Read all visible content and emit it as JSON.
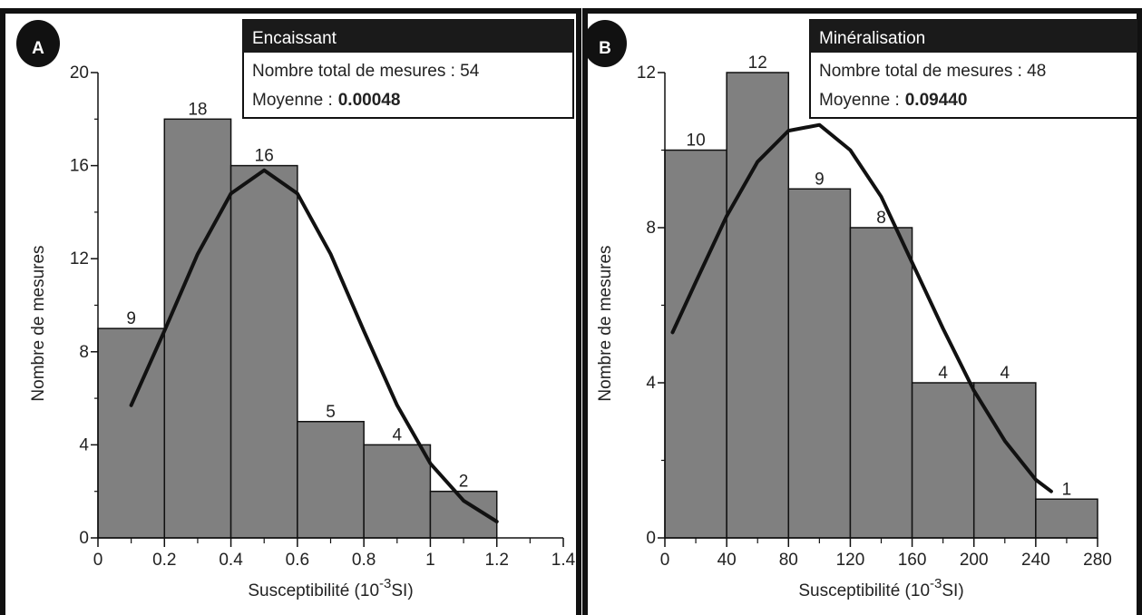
{
  "chart_data": [
    {
      "type": "histogram",
      "panel": "A",
      "box_title": "Encaissant",
      "box_line": "Nombre total de mesures : 54",
      "mean_label": "Moyenne :",
      "mean_value": "0.00048",
      "xlabel_parts": [
        "Susceptibilité (10",
        "-3",
        "SI)"
      ],
      "ylabel": "Nombre de mesures",
      "bins": [
        0,
        0.2,
        0.4,
        0.6,
        0.8,
        1.0,
        1.2
      ],
      "values": [
        9,
        18,
        16,
        5,
        4,
        2
      ],
      "color": "#808080",
      "xlim": [
        0,
        1.4
      ],
      "xticks": [
        0,
        0.2,
        0.4,
        0.6,
        0.8,
        1,
        1.2,
        1.4
      ],
      "ylim": [
        0,
        20
      ],
      "yticks": [
        0,
        4,
        8,
        12,
        16,
        20
      ],
      "fit": {
        "color": "#111111",
        "x": [
          0.1,
          0.2,
          0.3,
          0.4,
          0.5,
          0.6,
          0.7,
          0.8,
          0.9,
          1.0,
          1.1,
          1.2
        ],
        "values": [
          5.7,
          8.9,
          12.2,
          14.8,
          15.8,
          14.8,
          12.2,
          8.9,
          5.7,
          3.2,
          1.6,
          0.7
        ]
      }
    },
    {
      "type": "histogram",
      "panel": "B",
      "box_title": "Minéralisation",
      "box_line": "Nombre total de mesures : 48",
      "mean_label": "Moyenne :",
      "mean_value": "0.09440",
      "xlabel_parts": [
        "Susceptibilité (10",
        "-3",
        "SI)"
      ],
      "ylabel": "Nombre de mesures",
      "bins": [
        0,
        40,
        80,
        120,
        160,
        200,
        240,
        280
      ],
      "values": [
        10,
        12,
        9,
        8,
        4,
        4,
        1
      ],
      "color": "#808080",
      "xlim": [
        0,
        280
      ],
      "xticks": [
        0,
        40,
        80,
        120,
        160,
        200,
        240,
        280
      ],
      "ylim": [
        0,
        12
      ],
      "yticks": [
        0,
        4,
        8,
        12
      ],
      "fit": {
        "color": "#111111",
        "x": [
          5,
          20,
          40,
          60,
          80,
          100,
          120,
          140,
          160,
          180,
          200,
          220,
          240,
          250
        ],
        "values": [
          5.3,
          6.6,
          8.3,
          9.7,
          10.5,
          10.65,
          10.0,
          8.8,
          7.1,
          5.4,
          3.8,
          2.5,
          1.5,
          1.2
        ]
      }
    }
  ]
}
